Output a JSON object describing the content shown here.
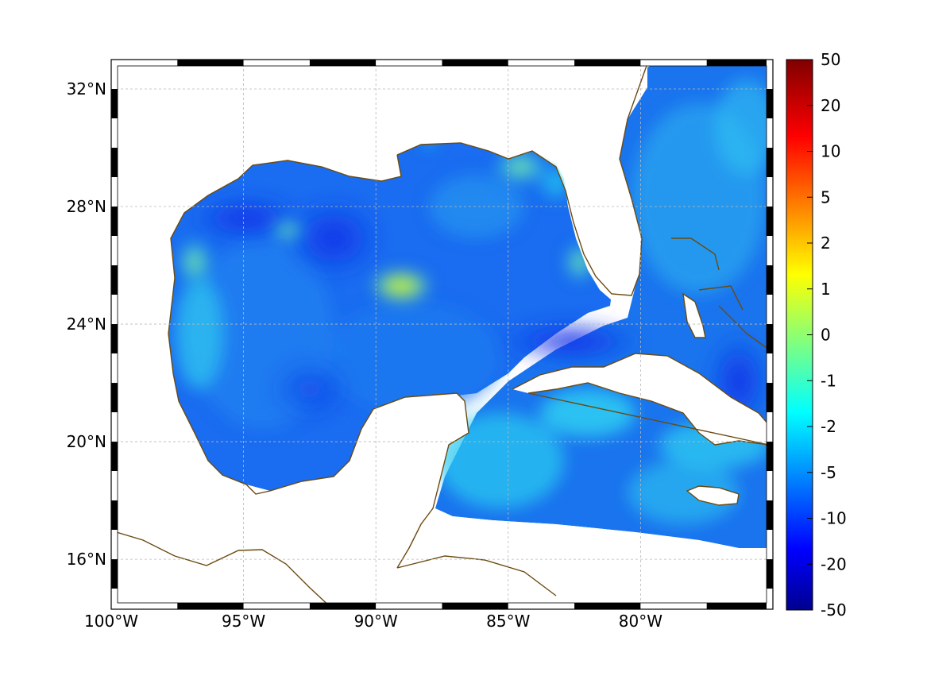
{
  "map": {
    "lon_range": [
      -100,
      -75
    ],
    "lat_range": [
      14.3,
      33
    ],
    "x_ticks": [
      {
        "lon": -100,
        "label": "100°W"
      },
      {
        "lon": -95,
        "label": "95°W"
      },
      {
        "lon": -90,
        "label": "90°W"
      },
      {
        "lon": -85,
        "label": "85°W"
      },
      {
        "lon": -80,
        "label": "80°W"
      }
    ],
    "y_ticks": [
      {
        "lat": 32,
        "label": "32°N"
      },
      {
        "lat": 28,
        "label": "28°N"
      },
      {
        "lat": 24,
        "label": "24°N"
      },
      {
        "lat": 20,
        "label": "20°N"
      },
      {
        "lat": 16,
        "label": "16°N"
      }
    ],
    "grid": true,
    "frame_style": "alternating black/white checkered border",
    "coastline_color": "#6b4a10",
    "land_color": "#ffffff"
  },
  "colorbar": {
    "position": "right",
    "colormap": "jet",
    "tick_labels": [
      "50",
      "20",
      "10",
      "5",
      "2",
      "1",
      "0",
      "-1",
      "-2",
      "-5",
      "-10",
      "-20",
      "-50"
    ],
    "min": -50,
    "max": 50
  },
  "field_features": {
    "background_level": "-5",
    "high_spots": [
      {
        "name": "central Gulf anomaly",
        "lon": -89.0,
        "lat": 25.5,
        "level": "1"
      },
      {
        "name": "northeast Gulf shelf",
        "lon": -84.8,
        "lat": 29.7,
        "level": "0"
      },
      {
        "name": "west Florida shelf",
        "lon": -83.0,
        "lat": 26.4,
        "level": "-1"
      },
      {
        "name": "Texas coast",
        "lon": -97.5,
        "lat": 26.5,
        "level": "-1"
      },
      {
        "name": "northwest Gulf streak",
        "lon": -93.5,
        "lat": 27.5,
        "level": "-1"
      }
    ],
    "low_spots": [
      {
        "name": "northwest Gulf minimum",
        "lon": -94.5,
        "lat": 27.8,
        "level": "-10"
      },
      {
        "name": "north of Cuba",
        "lon": -83.0,
        "lat": 23.6,
        "level": "-10"
      },
      {
        "name": "Atlantic near Bahamas",
        "lon": -77.0,
        "lat": 22.5,
        "level": "-10"
      }
    ]
  }
}
